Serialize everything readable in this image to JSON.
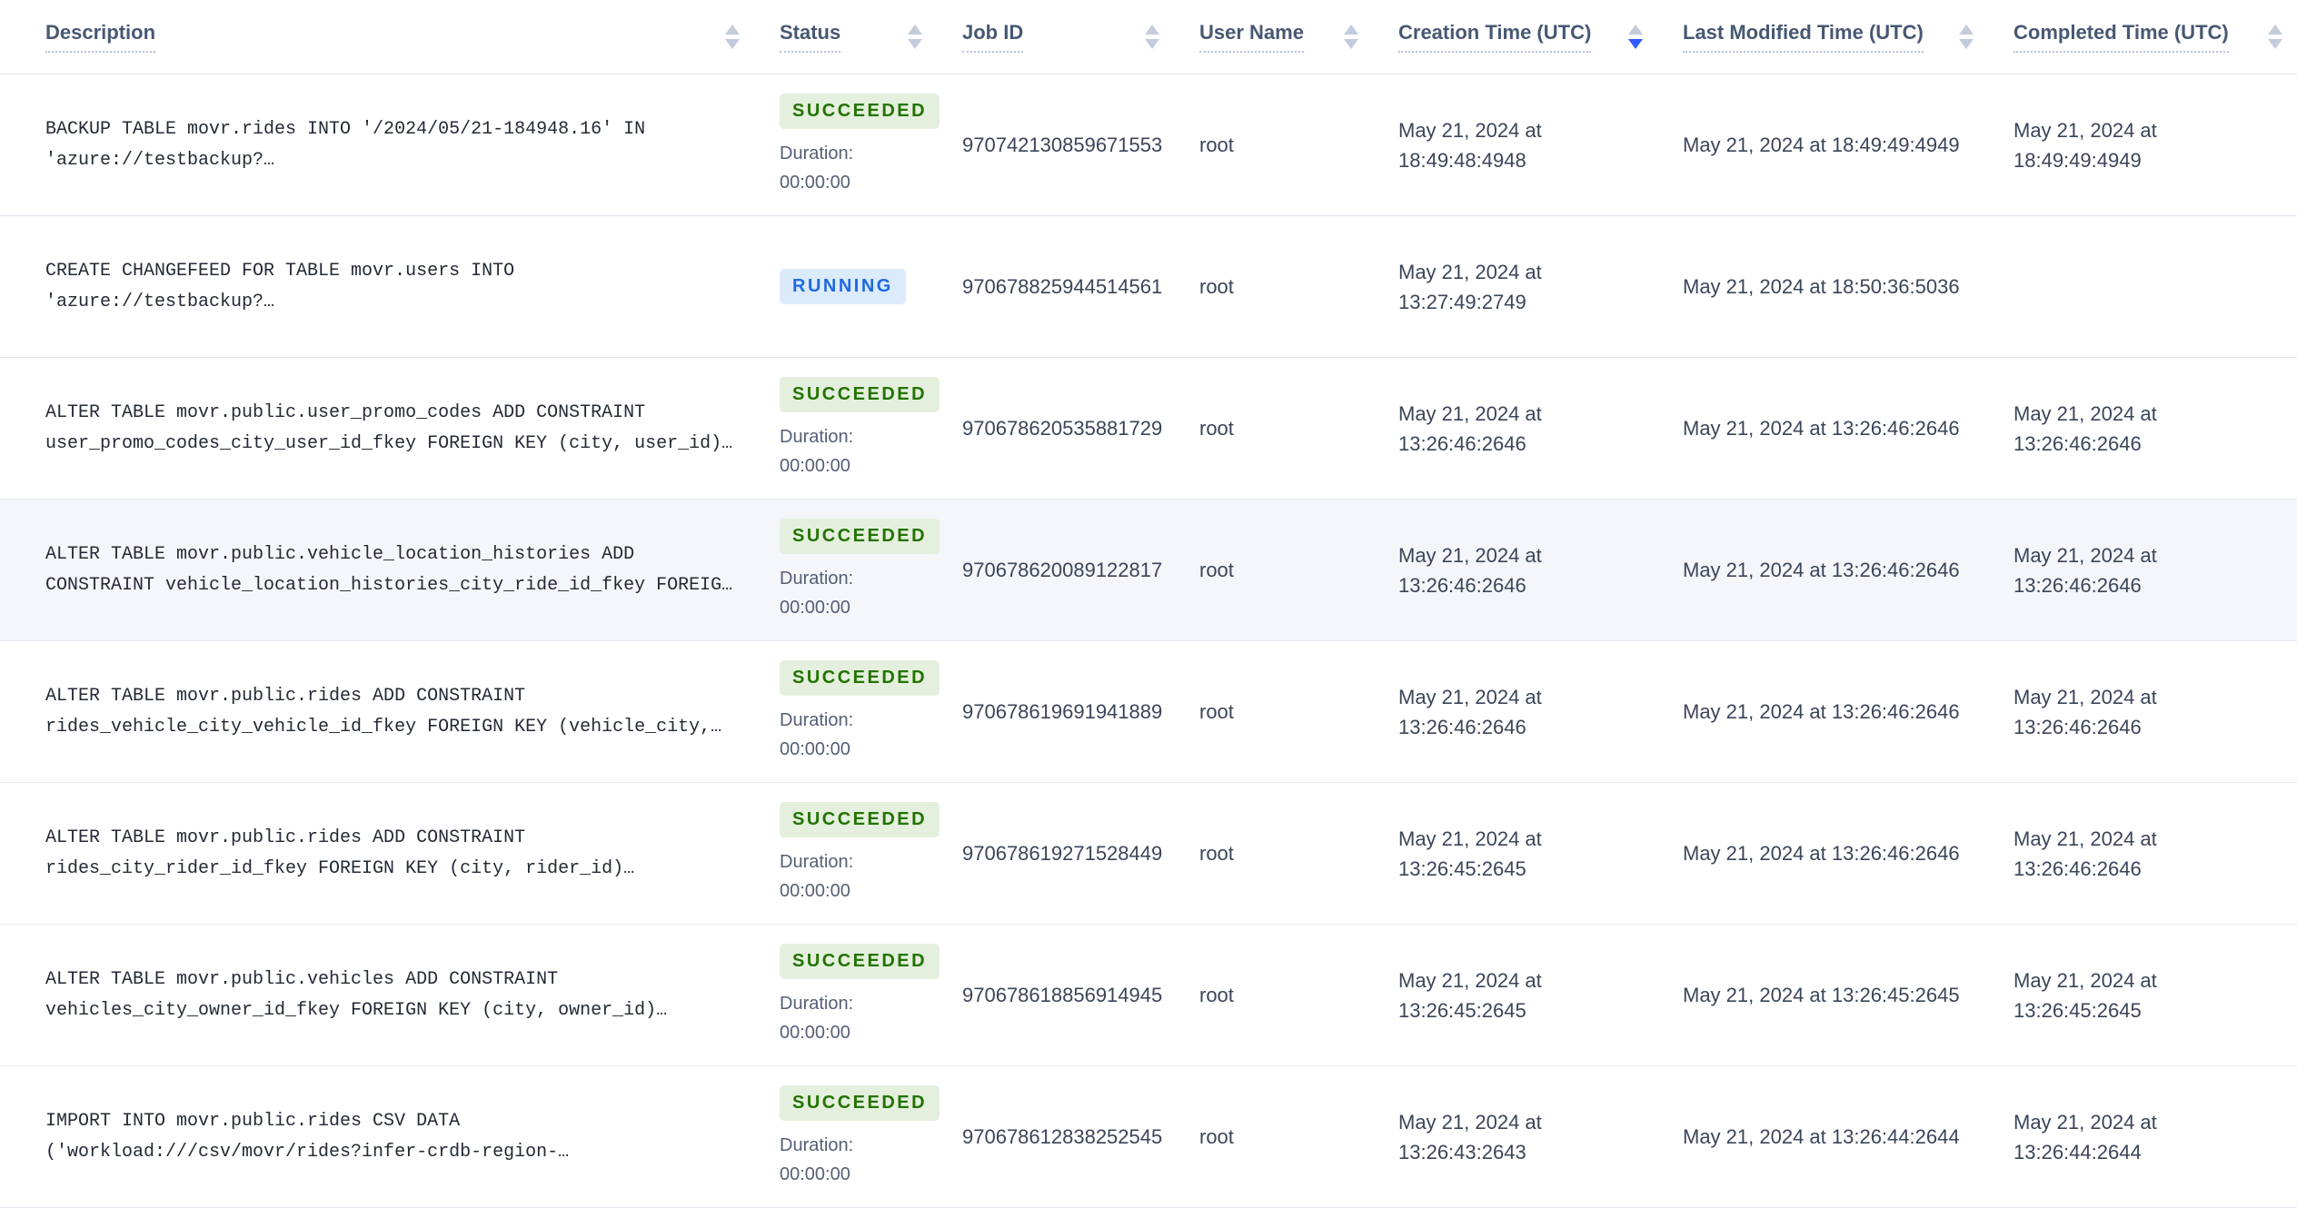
{
  "table": {
    "columns": [
      {
        "id": "description",
        "label": "Description",
        "sort": "none"
      },
      {
        "id": "status",
        "label": "Status",
        "sort": "none"
      },
      {
        "id": "job_id",
        "label": "Job ID",
        "sort": "none"
      },
      {
        "id": "user_name",
        "label": "User Name",
        "sort": "none"
      },
      {
        "id": "creation_time",
        "label": "Creation Time (UTC)",
        "sort": "desc"
      },
      {
        "id": "last_modified_time",
        "label": "Last Modified Time (UTC)",
        "sort": "none"
      },
      {
        "id": "completed_time",
        "label": "Completed Time (UTC)",
        "sort": "none"
      }
    ],
    "rows": [
      {
        "description": "BACKUP TABLE movr.rides INTO '/2024/05/21-184948.16' IN\n'azure://testbackup?…",
        "status": {
          "label": "SUCCEEDED",
          "variant": "succeeded"
        },
        "duration": "Duration:\n00:00:00",
        "job_id": "970742130859671553",
        "user_name": "root",
        "creation_time": "May 21, 2024 at\n18:49:48:4948",
        "last_modified_time": "May 21, 2024 at 18:49:49:4949",
        "completed_time": "May 21, 2024 at\n18:49:49:4949",
        "highlighted": false
      },
      {
        "description": "CREATE CHANGEFEED FOR TABLE movr.users INTO\n'azure://testbackup?…",
        "status": {
          "label": "RUNNING",
          "variant": "running"
        },
        "duration": "",
        "job_id": "970678825944514561",
        "user_name": "root",
        "creation_time": "May 21, 2024 at\n13:27:49:2749",
        "last_modified_time": "May 21, 2024 at 18:50:36:5036",
        "completed_time": "",
        "highlighted": false
      },
      {
        "description": "ALTER TABLE movr.public.user_promo_codes ADD CONSTRAINT\nuser_promo_codes_city_user_id_fkey FOREIGN KEY (city, user_id)…",
        "status": {
          "label": "SUCCEEDED",
          "variant": "succeeded"
        },
        "duration": "Duration:\n00:00:00",
        "job_id": "970678620535881729",
        "user_name": "root",
        "creation_time": "May 21, 2024 at\n13:26:46:2646",
        "last_modified_time": "May 21, 2024 at 13:26:46:2646",
        "completed_time": "May 21, 2024 at\n13:26:46:2646",
        "highlighted": false
      },
      {
        "description": "ALTER TABLE movr.public.vehicle_location_histories ADD\nCONSTRAINT vehicle_location_histories_city_ride_id_fkey FOREIG…",
        "status": {
          "label": "SUCCEEDED",
          "variant": "succeeded"
        },
        "duration": "Duration:\n00:00:00",
        "job_id": "970678620089122817",
        "user_name": "root",
        "creation_time": "May 21, 2024 at\n13:26:46:2646",
        "last_modified_time": "May 21, 2024 at 13:26:46:2646",
        "completed_time": "May 21, 2024 at\n13:26:46:2646",
        "highlighted": true
      },
      {
        "description": "ALTER TABLE movr.public.rides ADD CONSTRAINT\nrides_vehicle_city_vehicle_id_fkey FOREIGN KEY (vehicle_city,…",
        "status": {
          "label": "SUCCEEDED",
          "variant": "succeeded"
        },
        "duration": "Duration:\n00:00:00",
        "job_id": "970678619691941889",
        "user_name": "root",
        "creation_time": "May 21, 2024 at\n13:26:46:2646",
        "last_modified_time": "May 21, 2024 at 13:26:46:2646",
        "completed_time": "May 21, 2024 at\n13:26:46:2646",
        "highlighted": false
      },
      {
        "description": "ALTER TABLE movr.public.rides ADD CONSTRAINT\nrides_city_rider_id_fkey FOREIGN KEY (city, rider_id)…",
        "status": {
          "label": "SUCCEEDED",
          "variant": "succeeded"
        },
        "duration": "Duration:\n00:00:00",
        "job_id": "970678619271528449",
        "user_name": "root",
        "creation_time": "May 21, 2024 at\n13:26:45:2645",
        "last_modified_time": "May 21, 2024 at 13:26:46:2646",
        "completed_time": "May 21, 2024 at\n13:26:46:2646",
        "highlighted": false
      },
      {
        "description": "ALTER TABLE movr.public.vehicles ADD CONSTRAINT\nvehicles_city_owner_id_fkey FOREIGN KEY (city, owner_id)…",
        "status": {
          "label": "SUCCEEDED",
          "variant": "succeeded"
        },
        "duration": "Duration:\n00:00:00",
        "job_id": "970678618856914945",
        "user_name": "root",
        "creation_time": "May 21, 2024 at\n13:26:45:2645",
        "last_modified_time": "May 21, 2024 at 13:26:45:2645",
        "completed_time": "May 21, 2024 at\n13:26:45:2645",
        "highlighted": false
      },
      {
        "description": "IMPORT INTO movr.public.rides CSV DATA\n('workload:///csv/movr/rides?infer-crdb-region-…",
        "status": {
          "label": "SUCCEEDED",
          "variant": "succeeded"
        },
        "duration": "Duration:\n00:00:00",
        "job_id": "970678612838252545",
        "user_name": "root",
        "creation_time": "May 21, 2024 at\n13:26:43:2643",
        "last_modified_time": "May 21, 2024 at 13:26:44:2644",
        "completed_time": "May 21, 2024 at\n13:26:44:2644",
        "highlighted": false
      }
    ]
  },
  "colors": {
    "succeeded_bg": "#e4f0dd",
    "succeeded_text": "#237300",
    "running_bg": "#dcebfc",
    "running_text": "#1f69e0",
    "sort_active": "#2e5bff",
    "sort_inactive": "#c3ccdc",
    "row_highlight_bg": "#f4f6fa"
  }
}
